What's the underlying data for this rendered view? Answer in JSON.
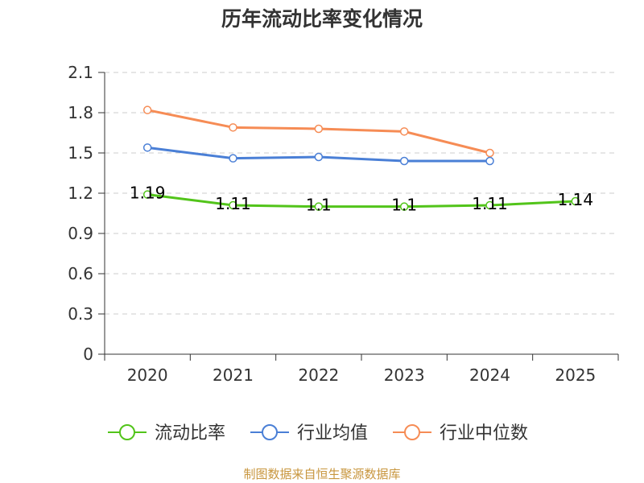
{
  "chart_data": {
    "type": "line",
    "title": "历年流动比率变化情况",
    "categories": [
      "2020",
      "2021",
      "2022",
      "2023",
      "2024",
      "2025"
    ],
    "ylim": [
      0,
      2.1
    ],
    "yticks": [
      "0",
      "0.3",
      "0.6",
      "0.9",
      "1.2",
      "1.5",
      "1.8",
      "2.1"
    ],
    "grid": true,
    "legend_position": "bottom",
    "series": [
      {
        "name": "流动比率",
        "color": "#52c41a",
        "values": [
          1.19,
          1.11,
          1.1,
          1.1,
          1.11,
          1.14
        ],
        "labels": [
          "1.19",
          "1.11",
          "1.1",
          "1.1",
          "1.11",
          "1.14"
        ]
      },
      {
        "name": "行业均值",
        "color": "#4a7fd6",
        "values": [
          1.54,
          1.46,
          1.47,
          1.44,
          1.44,
          null
        ]
      },
      {
        "name": "行业中位数",
        "color": "#f68c55",
        "values": [
          1.82,
          1.69,
          1.68,
          1.66,
          1.5,
          null
        ]
      }
    ]
  },
  "source": "制图数据来自恒生聚源数据库"
}
